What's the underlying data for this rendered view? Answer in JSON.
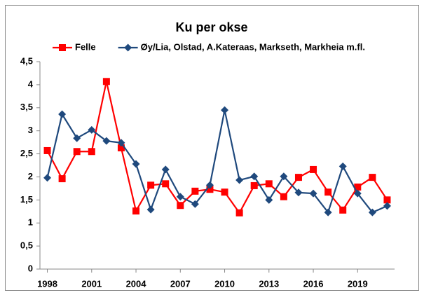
{
  "chart_data": {
    "type": "line",
    "title": "Ku per okse",
    "x": [
      1998,
      1999,
      2000,
      2001,
      2002,
      2003,
      2004,
      2005,
      2006,
      2007,
      2008,
      2009,
      2010,
      2011,
      2012,
      2013,
      2014,
      2015,
      2016,
      2017,
      2018,
      2019,
      2020,
      2021
    ],
    "series": [
      {
        "name": "Felle",
        "color": "#ff0000",
        "marker": "square",
        "values": [
          2.57,
          1.96,
          2.55,
          2.55,
          4.07,
          2.63,
          1.26,
          1.82,
          1.85,
          1.38,
          1.69,
          1.73,
          1.67,
          1.22,
          1.81,
          1.85,
          1.57,
          1.99,
          2.16,
          1.67,
          1.28,
          1.78,
          1.99,
          1.5
        ]
      },
      {
        "name": "Øy/Lia, Olstad, A.Kateraas, Markseth, Markheia m.fl.",
        "color": "#1f497d",
        "marker": "diamond",
        "values": [
          1.98,
          3.36,
          2.84,
          3.02,
          2.78,
          2.74,
          2.28,
          1.29,
          2.16,
          1.57,
          1.41,
          1.82,
          3.45,
          1.93,
          2.01,
          1.5,
          2.01,
          1.66,
          1.64,
          1.23,
          2.23,
          1.64,
          1.23,
          1.37
        ]
      }
    ],
    "xlim": [
      1997.5,
      2021.5
    ],
    "xticks": [
      1998,
      2001,
      2004,
      2007,
      2010,
      2013,
      2016,
      2019
    ],
    "ylim": [
      0,
      4.5
    ],
    "yticks": [
      0,
      {
        "value": 0.5,
        "label": "0,5"
      },
      1,
      {
        "value": 1.5,
        "label": "1,5"
      },
      2,
      {
        "value": 2.5,
        "label": "2,5"
      },
      3,
      {
        "value": 3.5,
        "label": "3,5"
      },
      4,
      {
        "value": 4.5,
        "label": "4,5"
      }
    ],
    "grid": false,
    "legend": "top"
  }
}
